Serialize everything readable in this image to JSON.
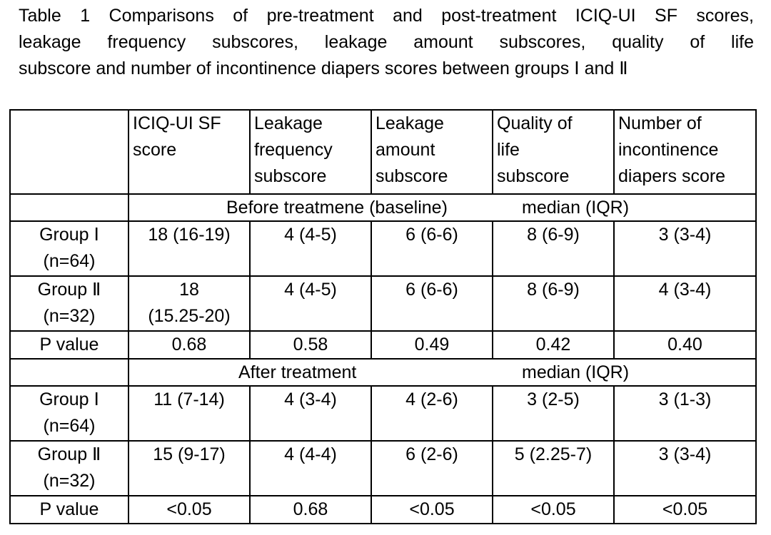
{
  "caption": {
    "line1": "Table 1    Comparisons of pre-treatment and post-treatment ICIQ-UI SF scores,",
    "line2": "leakage frequency subscores, leakage amount subscores, quality of life",
    "line3": "subscore and number of incontinence diapers scores between groups Ⅰ and Ⅱ"
  },
  "header": {
    "corner": "",
    "columns": [
      [
        "ICIQ-UI SF",
        "score"
      ],
      [
        "Leakage",
        "frequency",
        "subscore"
      ],
      [
        "Leakage",
        "amount",
        "subscore"
      ],
      [
        "Quality of",
        "life",
        "subscore"
      ],
      [
        "Number of",
        "incontinence",
        "diapers score"
      ]
    ]
  },
  "sections": [
    {
      "label_a": "Before treatmene (baseline)",
      "label_b": "median (IQR)",
      "rows": [
        {
          "label": [
            "Group Ⅰ",
            "(n=64)"
          ],
          "values": [
            [
              "18 (16-19)"
            ],
            [
              "4 (4-5)"
            ],
            [
              "6 (6-6)"
            ],
            [
              "8 (6-9)"
            ],
            [
              "3 (3-4)"
            ]
          ]
        },
        {
          "label": [
            "Group Ⅱ",
            "(n=32)"
          ],
          "values": [
            [
              "18",
              "(15.25-20)"
            ],
            [
              "4 (4-5)"
            ],
            [
              "6 (6-6)"
            ],
            [
              "8 (6-9)"
            ],
            [
              "4 (3-4)"
            ]
          ]
        }
      ],
      "p_label": "P value",
      "p_values": [
        "0.68",
        "0.58",
        "0.49",
        "0.42",
        "0.40"
      ]
    },
    {
      "label_a": "After treatment",
      "label_b": "median (IQR)",
      "rows": [
        {
          "label": [
            "Group Ⅰ",
            "(n=64)"
          ],
          "values": [
            [
              "11 (7-14)"
            ],
            [
              "4 (3-4)"
            ],
            [
              "4 (2-6)"
            ],
            [
              "3 (2-5)"
            ],
            [
              "3 (1-3)"
            ]
          ]
        },
        {
          "label": [
            "Group Ⅱ",
            "(n=32)"
          ],
          "values": [
            [
              "15 (9-17)"
            ],
            [
              "4 (4-4)"
            ],
            [
              "6 (2-6)"
            ],
            [
              "5 (2.25-7)"
            ],
            [
              "3 (3-4)"
            ]
          ]
        }
      ],
      "p_label": "P value",
      "p_values": [
        "<0.05",
        "0.68",
        "<0.05",
        "<0.05",
        "<0.05"
      ]
    }
  ]
}
